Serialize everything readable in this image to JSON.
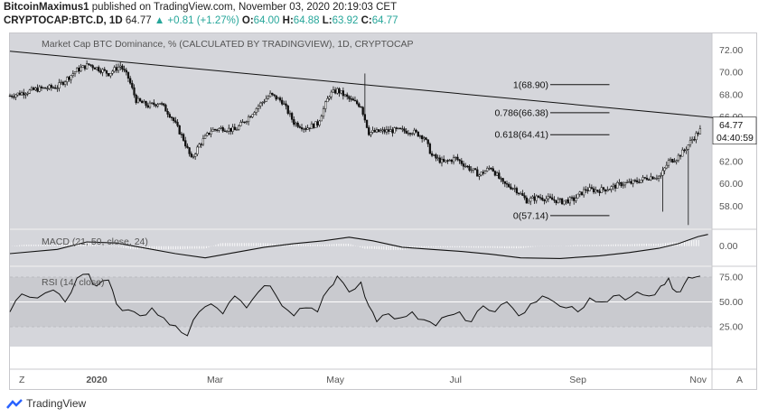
{
  "header": {
    "author": "BitcoinMaximus1",
    "published_text": "published on TradingView.com, November 03, 2020 20:19:03 CET",
    "symbol": "CRYPTOCAP:BTC.D, 1D",
    "last": "64.77",
    "change": "+0.81 (+1.27%)",
    "o_label": "O:",
    "o_val": "64.00",
    "h_label": "H:",
    "h_val": "64.88",
    "l_label": "L:",
    "l_val": "63.92",
    "c_label": "C:",
    "c_val": "64.77"
  },
  "footer": {
    "brand": "TradingView"
  },
  "colors": {
    "pane_bg": "#d5d6db",
    "line": "#111111",
    "text": "#555555"
  },
  "chart_data": {
    "type": "candlestick",
    "title": "Market Cap BTC Dominance, % (CALCULATED BY TRADINGVIEW), 1D, CRYPTOCAP",
    "x_ticks": [
      "2020",
      "Mar",
      "May",
      "Jul",
      "Sep",
      "Nov"
    ],
    "x_tick_days": [
      0,
      60,
      121,
      182,
      244,
      305
    ],
    "x_range_days": [
      -44,
      312
    ],
    "price": {
      "ylim": [
        56.0,
        73.5
      ],
      "y_ticks": [
        "72.00",
        "70.00",
        "68.00",
        "66.00",
        "64.00",
        "62.00",
        "60.00",
        "58.00"
      ],
      "y_tick_values": [
        72,
        70,
        68,
        66,
        64,
        62,
        60,
        58
      ],
      "last_price_label": "64.77",
      "countdown_label": "04:40:59",
      "path": [
        [
          -44,
          67.9
        ],
        [
          -30,
          68.5
        ],
        [
          -20,
          68.7
        ],
        [
          -10,
          70.2
        ],
        [
          -4,
          70.7
        ],
        [
          0,
          70.4
        ],
        [
          6,
          69.9
        ],
        [
          12,
          70.6
        ],
        [
          16,
          69.5
        ],
        [
          20,
          67.5
        ],
        [
          26,
          67.0
        ],
        [
          32,
          67.3
        ],
        [
          38,
          66.0
        ],
        [
          44,
          64.0
        ],
        [
          48,
          62.2
        ],
        [
          52,
          63.5
        ],
        [
          58,
          64.8
        ],
        [
          64,
          65.0
        ],
        [
          70,
          64.8
        ],
        [
          76,
          65.8
        ],
        [
          82,
          67.0
        ],
        [
          88,
          68.0
        ],
        [
          94,
          67.4
        ],
        [
          100,
          65.5
        ],
        [
          106,
          65.0
        ],
        [
          112,
          65.4
        ],
        [
          118,
          68.0
        ],
        [
          122,
          68.4
        ],
        [
          128,
          67.6
        ],
        [
          134,
          67.0
        ],
        [
          138,
          64.6
        ],
        [
          144,
          64.7
        ],
        [
          152,
          64.8
        ],
        [
          160,
          64.7
        ],
        [
          166,
          64.2
        ],
        [
          170,
          62.5
        ],
        [
          176,
          61.9
        ],
        [
          182,
          62.3
        ],
        [
          188,
          61.5
        ],
        [
          194,
          60.8
        ],
        [
          200,
          61.5
        ],
        [
          206,
          60.0
        ],
        [
          212,
          59.6
        ],
        [
          218,
          58.5
        ],
        [
          224,
          58.8
        ],
        [
          230,
          58.6
        ],
        [
          236,
          58.4
        ],
        [
          242,
          58.6
        ],
        [
          248,
          59.5
        ],
        [
          254,
          59.4
        ],
        [
          260,
          59.6
        ],
        [
          266,
          60.0
        ],
        [
          272,
          60.1
        ],
        [
          280,
          60.6
        ],
        [
          286,
          60.7
        ],
        [
          290,
          62.0
        ],
        [
          294,
          62.3
        ],
        [
          298,
          63.0
        ],
        [
          302,
          64.0
        ],
        [
          306,
          64.8
        ]
      ],
      "spikes": [
        {
          "day": 136,
          "high": 69.9
        },
        {
          "day": 287,
          "low": 57.5
        },
        {
          "day": 300,
          "low": 56.3
        }
      ],
      "trendline": [
        [
          -44,
          71.9
        ],
        [
          312,
          65.9
        ]
      ],
      "fib_levels": [
        {
          "label": "1(68.90)",
          "value": 68.9
        },
        {
          "label": "0.786(66.38)",
          "value": 66.38
        },
        {
          "label": "0.618(64.41)",
          "value": 64.41
        },
        {
          "label": "0(57.14)",
          "value": 57.14
        }
      ],
      "fib_range_days": [
        230,
        260
      ]
    },
    "macd": {
      "label": "MACD (21, 50, close, 24)",
      "ylim": [
        -0.9,
        0.75
      ],
      "y_ticks": [
        "0.00"
      ],
      "y_tick_values": [
        0
      ],
      "line": [
        [
          -44,
          -0.35
        ],
        [
          -20,
          -0.15
        ],
        [
          -5,
          0.2
        ],
        [
          10,
          0.15
        ],
        [
          25,
          -0.1
        ],
        [
          40,
          -0.35
        ],
        [
          55,
          -0.55
        ],
        [
          70,
          -0.3
        ],
        [
          85,
          -0.05
        ],
        [
          100,
          0.12
        ],
        [
          115,
          0.25
        ],
        [
          128,
          0.42
        ],
        [
          140,
          0.25
        ],
        [
          155,
          -0.05
        ],
        [
          170,
          -0.15
        ],
        [
          185,
          -0.25
        ],
        [
          200,
          -0.38
        ],
        [
          215,
          -0.55
        ],
        [
          235,
          -0.58
        ],
        [
          255,
          -0.45
        ],
        [
          270,
          -0.3
        ],
        [
          285,
          -0.1
        ],
        [
          295,
          0.12
        ],
        [
          305,
          0.45
        ],
        [
          310,
          0.55
        ]
      ]
    },
    "rsi": {
      "label": "RSI (14, close)",
      "ylim": [
        5,
        85
      ],
      "y_ticks": [
        "75.00",
        "50.00",
        "25.00"
      ],
      "y_tick_values": [
        75,
        50,
        25
      ],
      "line": [
        [
          -44,
          40
        ],
        [
          -38,
          58
        ],
        [
          -30,
          54
        ],
        [
          -22,
          62
        ],
        [
          -16,
          50
        ],
        [
          -10,
          74
        ],
        [
          -4,
          78
        ],
        [
          0,
          66
        ],
        [
          6,
          72
        ],
        [
          10,
          48
        ],
        [
          16,
          42
        ],
        [
          22,
          36
        ],
        [
          28,
          44
        ],
        [
          34,
          34
        ],
        [
          40,
          26
        ],
        [
          46,
          16
        ],
        [
          52,
          40
        ],
        [
          58,
          48
        ],
        [
          64,
          38
        ],
        [
          70,
          56
        ],
        [
          76,
          44
        ],
        [
          82,
          60
        ],
        [
          88,
          66
        ],
        [
          94,
          46
        ],
        [
          100,
          36
        ],
        [
          106,
          44
        ],
        [
          112,
          40
        ],
        [
          118,
          64
        ],
        [
          122,
          76
        ],
        [
          128,
          60
        ],
        [
          134,
          70
        ],
        [
          138,
          46
        ],
        [
          142,
          30
        ],
        [
          148,
          38
        ],
        [
          154,
          34
        ],
        [
          160,
          40
        ],
        [
          166,
          32
        ],
        [
          172,
          26
        ],
        [
          178,
          36
        ],
        [
          184,
          40
        ],
        [
          190,
          30
        ],
        [
          196,
          46
        ],
        [
          202,
          40
        ],
        [
          208,
          50
        ],
        [
          214,
          36
        ],
        [
          220,
          48
        ],
        [
          226,
          56
        ],
        [
          232,
          50
        ],
        [
          238,
          44
        ],
        [
          244,
          40
        ],
        [
          250,
          54
        ],
        [
          256,
          50
        ],
        [
          262,
          56
        ],
        [
          268,
          52
        ],
        [
          274,
          60
        ],
        [
          280,
          56
        ],
        [
          286,
          66
        ],
        [
          290,
          74
        ],
        [
          294,
          60
        ],
        [
          298,
          68
        ],
        [
          302,
          74
        ],
        [
          306,
          76
        ]
      ]
    }
  }
}
